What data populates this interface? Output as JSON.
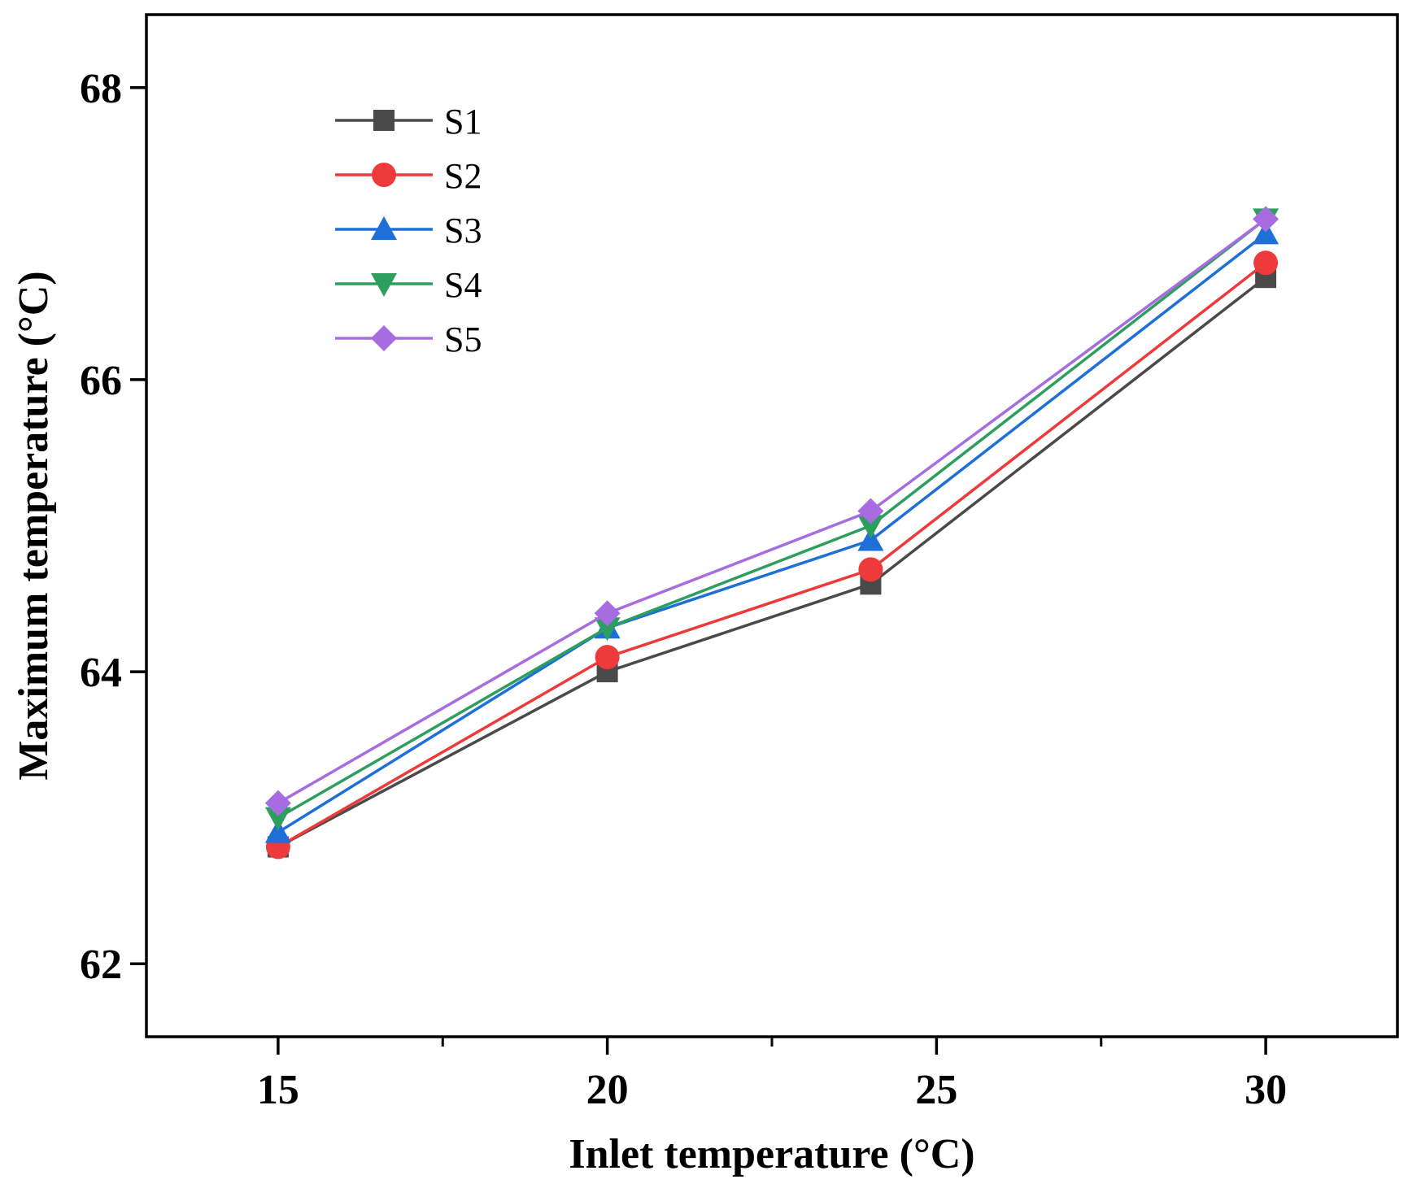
{
  "chart_data": {
    "type": "line",
    "title": "",
    "xlabel": "Inlet temperature (°C)",
    "ylabel": "Maximum temperature (°C)",
    "xlim": [
      13,
      32
    ],
    "ylim": [
      61.5,
      68.5
    ],
    "xticks": [
      15,
      20,
      25,
      30
    ],
    "xtick_labels": [
      "15",
      "20",
      "25",
      "30"
    ],
    "x_minor_ticks": [
      17.5,
      22.5,
      27.5
    ],
    "yticks": [
      62,
      64,
      66,
      68
    ],
    "ytick_labels": [
      "62",
      "64",
      "66",
      "68"
    ],
    "x": [
      15,
      20,
      24,
      30
    ],
    "legend_position": "top-left",
    "series": [
      {
        "name": "S1",
        "values": [
          62.8,
          64.0,
          64.6,
          66.7
        ],
        "color": "#4a4a4a",
        "marker": "square"
      },
      {
        "name": "S2",
        "values": [
          62.8,
          64.1,
          64.7,
          66.8
        ],
        "color": "#ee3a3a",
        "marker": "circle"
      },
      {
        "name": "S3",
        "values": [
          62.9,
          64.3,
          64.9,
          67.0
        ],
        "color": "#1f6fd8",
        "marker": "triangle-up"
      },
      {
        "name": "S4",
        "values": [
          63.0,
          64.3,
          65.0,
          67.1
        ],
        "color": "#2e9e5e",
        "marker": "triangle-down"
      },
      {
        "name": "S5",
        "values": [
          63.1,
          64.4,
          65.1,
          67.1
        ],
        "color": "#a76de0",
        "marker": "diamond"
      }
    ]
  }
}
